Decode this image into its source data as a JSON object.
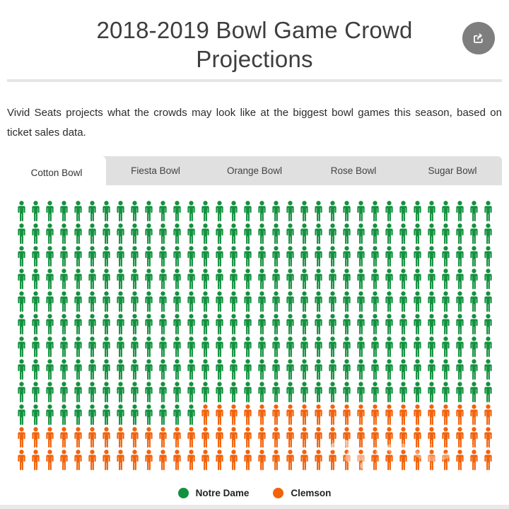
{
  "header": {
    "title": "2018-2019 Bowl Game Crowd Projections"
  },
  "share_button": {
    "icon": "share-export",
    "aria_label": "Share"
  },
  "description": "Vivid Seats projects what the crowds may look like at the biggest bowl games this season, based on ticket sales data.",
  "tabs": [
    {
      "label": "Cotton Bowl",
      "active": true
    },
    {
      "label": "Fiesta Bowl",
      "active": false
    },
    {
      "label": "Orange Bowl",
      "active": false
    },
    {
      "label": "Rose Bowl",
      "active": false
    },
    {
      "label": "Sugar Bowl",
      "active": false
    }
  ],
  "chart_data": {
    "type": "pictogram",
    "title": "Cotton Bowl crowd projection",
    "unit": "person-icon",
    "columns": 34,
    "rows": 12,
    "total_icons": 408,
    "fill_order": "row-major, Notre Dame first",
    "series": [
      {
        "name": "Notre Dame",
        "color": "#12913E",
        "icons": 319
      },
      {
        "name": "Clemson",
        "color": "#F2620B",
        "icons": 89
      }
    ],
    "legend": [
      "Notre Dame",
      "Clemson"
    ],
    "legend_position": "bottom"
  },
  "colors": {
    "notre_dame_green": "#12913E",
    "clemson_orange": "#F2620B",
    "tab_bar_bg": "#E0E0E0",
    "divider_gray": "#E5E5E5",
    "share_button_gray": "#7E7E7E",
    "title_gray": "#3E3E3E"
  }
}
